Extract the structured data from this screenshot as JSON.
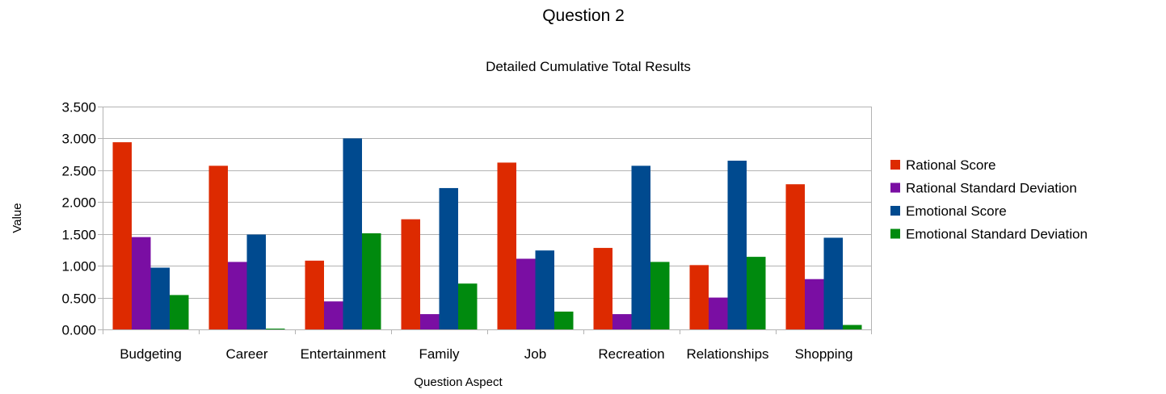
{
  "chart_data": {
    "type": "bar",
    "title": "Question 2",
    "subtitle": "Detailed Cumulative Total Results",
    "xlabel": "Question Aspect",
    "ylabel": "Value",
    "ylim": [
      0,
      3.5
    ],
    "yticks": [
      "0.000",
      "0.500",
      "1.000",
      "1.500",
      "2.000",
      "2.500",
      "3.000",
      "3.500"
    ],
    "grid": true,
    "legend_position": "right",
    "categories": [
      "Budgeting",
      "Career",
      "Entertainment",
      "Family",
      "Job",
      "Recreation",
      "Relationships",
      "Shopping"
    ],
    "series": [
      {
        "name": "Rational Score",
        "color": "#dd2a00",
        "values": [
          2.94,
          2.57,
          1.08,
          1.73,
          2.62,
          1.28,
          1.01,
          2.28
        ]
      },
      {
        "name": "Rational Standard Deviation",
        "color": "#7a0ea3",
        "values": [
          1.45,
          1.06,
          0.44,
          0.24,
          1.11,
          0.24,
          0.5,
          0.79
        ]
      },
      {
        "name": "Emotional Score",
        "color": "#004a8f",
        "values": [
          0.97,
          1.49,
          3.0,
          2.22,
          1.24,
          2.57,
          2.65,
          1.44
        ]
      },
      {
        "name": "Emotional Standard Deviation",
        "color": "#008a0e",
        "values": [
          0.54,
          0.0,
          1.51,
          0.72,
          0.28,
          1.06,
          1.14,
          0.07
        ]
      }
    ]
  }
}
